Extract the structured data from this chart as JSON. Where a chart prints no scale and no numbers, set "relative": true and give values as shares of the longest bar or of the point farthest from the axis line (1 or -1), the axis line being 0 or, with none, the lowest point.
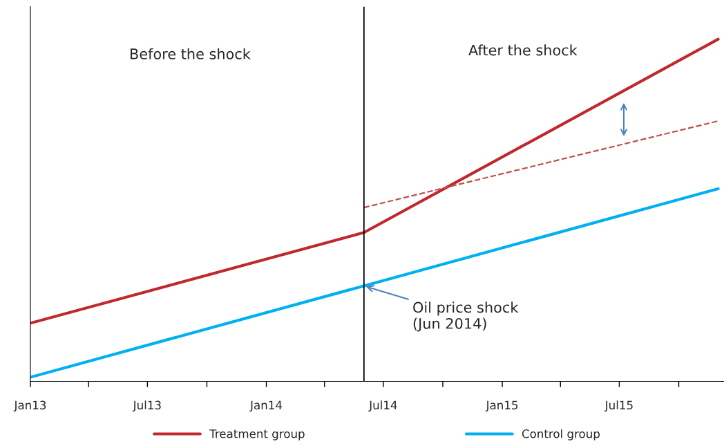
{
  "chart_data": {
    "type": "line",
    "relative": true,
    "series": [
      {
        "name": "Treatment group",
        "color": "#c0282d",
        "x": [
          "2013-01",
          "2014-06",
          "2015-12"
        ],
        "values": [
          0.17,
          0.435,
          1
        ],
        "line_style": "solid"
      },
      {
        "name": "Control group",
        "color": "#00b0f0",
        "x": [
          "2013-01",
          "2014-06",
          "2015-12"
        ],
        "values": [
          0.012,
          0.279,
          0.563
        ],
        "line_style": "solid"
      },
      {
        "color": "#c0504d",
        "x": [
          "2014-06",
          "2015-12"
        ],
        "values": [
          0.508,
          0.761
        ],
        "line_style": "dashed"
      }
    ],
    "xlim": [
      "2013-01",
      "2015-12-10"
    ],
    "xticks": [
      {
        "value": "2013-01",
        "label": "Jan13"
      },
      {
        "value": "2013-04",
        "label": null
      },
      {
        "value": "2013-07",
        "label": "Jul13"
      },
      {
        "value": "2013-10",
        "label": null
      },
      {
        "value": "2014-01",
        "label": "Jan14"
      },
      {
        "value": "2014-04",
        "label": null
      },
      {
        "value": "2014-07",
        "label": "Jul14"
      },
      {
        "value": "2014-10",
        "label": null
      },
      {
        "value": "2015-01",
        "label": "Jan15"
      },
      {
        "value": "2015-04",
        "label": null
      },
      {
        "value": "2015-07",
        "label": "Jul15"
      },
      {
        "value": "2015-10",
        "label": null
      }
    ],
    "ref_lines": [
      {
        "axis": "x",
        "value": "2014-06",
        "color": "#000000",
        "line_style": "solid"
      }
    ],
    "annotations": [
      "Before the shock",
      "After the shock",
      {
        "text": "Oil price shock\n(Jun 2014)",
        "x": "2014-06",
        "y": 0.279
      }
    ],
    "legend": "bottom",
    "grid": false,
    "marker": "none"
  }
}
